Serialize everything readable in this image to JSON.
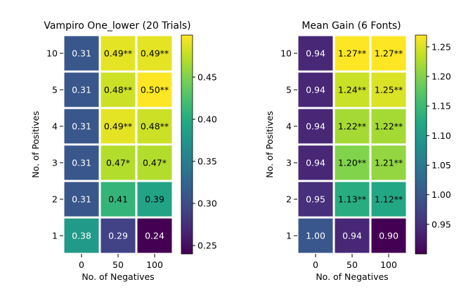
{
  "chart_data": [
    {
      "type": "heatmap",
      "title": "Vampiro One_lower (20 Trials)",
      "xlabel": "No. of Negatives",
      "ylabel": "No. of Positives",
      "x_categories": [
        "0",
        "50",
        "100"
      ],
      "y_categories": [
        "10",
        "5",
        "4",
        "3",
        "2",
        "1"
      ],
      "values": [
        [
          0.31,
          0.49,
          0.49
        ],
        [
          0.31,
          0.48,
          0.5
        ],
        [
          0.31,
          0.49,
          0.48
        ],
        [
          0.31,
          0.47,
          0.47
        ],
        [
          0.31,
          0.41,
          0.39
        ],
        [
          0.38,
          0.29,
          0.24
        ]
      ],
      "annotations": [
        [
          "0.31",
          "0.49**",
          "0.49**"
        ],
        [
          "0.31",
          "0.48**",
          "0.50**"
        ],
        [
          "0.31",
          "0.49**",
          "0.48**"
        ],
        [
          "0.31",
          "0.47*",
          "0.47*"
        ],
        [
          "0.31",
          "0.41",
          "0.39"
        ],
        [
          "0.38",
          "0.29",
          "0.24"
        ]
      ],
      "colormap": "viridis",
      "vmin": 0.24,
      "vmax": 0.5,
      "colorbar_ticks": [
        0.25,
        0.3,
        0.35,
        0.4,
        0.45
      ],
      "colorbar_tick_labels": [
        "0.25",
        "0.30",
        "0.35",
        "0.40",
        "0.45"
      ]
    },
    {
      "type": "heatmap",
      "title": "Mean Gain (6 Fonts)",
      "xlabel": "No. of Negatives",
      "ylabel": "No. of Positives",
      "x_categories": [
        "0",
        "50",
        "100"
      ],
      "y_categories": [
        "10",
        "5",
        "4",
        "3",
        "2",
        "1"
      ],
      "values": [
        [
          0.94,
          1.27,
          1.27
        ],
        [
          0.94,
          1.24,
          1.25
        ],
        [
          0.94,
          1.22,
          1.22
        ],
        [
          0.94,
          1.2,
          1.21
        ],
        [
          0.95,
          1.13,
          1.12
        ],
        [
          1.0,
          0.94,
          0.9
        ]
      ],
      "annotations": [
        [
          "0.94",
          "1.27**",
          "1.27**"
        ],
        [
          "0.94",
          "1.24**",
          "1.25**"
        ],
        [
          "0.94",
          "1.22**",
          "1.22**"
        ],
        [
          "0.94",
          "1.20**",
          "1.21**"
        ],
        [
          "0.95",
          "1.13**",
          "1.12**"
        ],
        [
          "1.00",
          "0.94",
          "0.90"
        ]
      ],
      "colormap": "viridis",
      "vmin": 0.9,
      "vmax": 1.27,
      "colorbar_ticks": [
        0.95,
        1.0,
        1.05,
        1.1,
        1.15,
        1.2,
        1.25
      ],
      "colorbar_tick_labels": [
        "0.95",
        "1.00",
        "1.05",
        "1.10",
        "1.15",
        "1.20",
        "1.25"
      ]
    }
  ]
}
